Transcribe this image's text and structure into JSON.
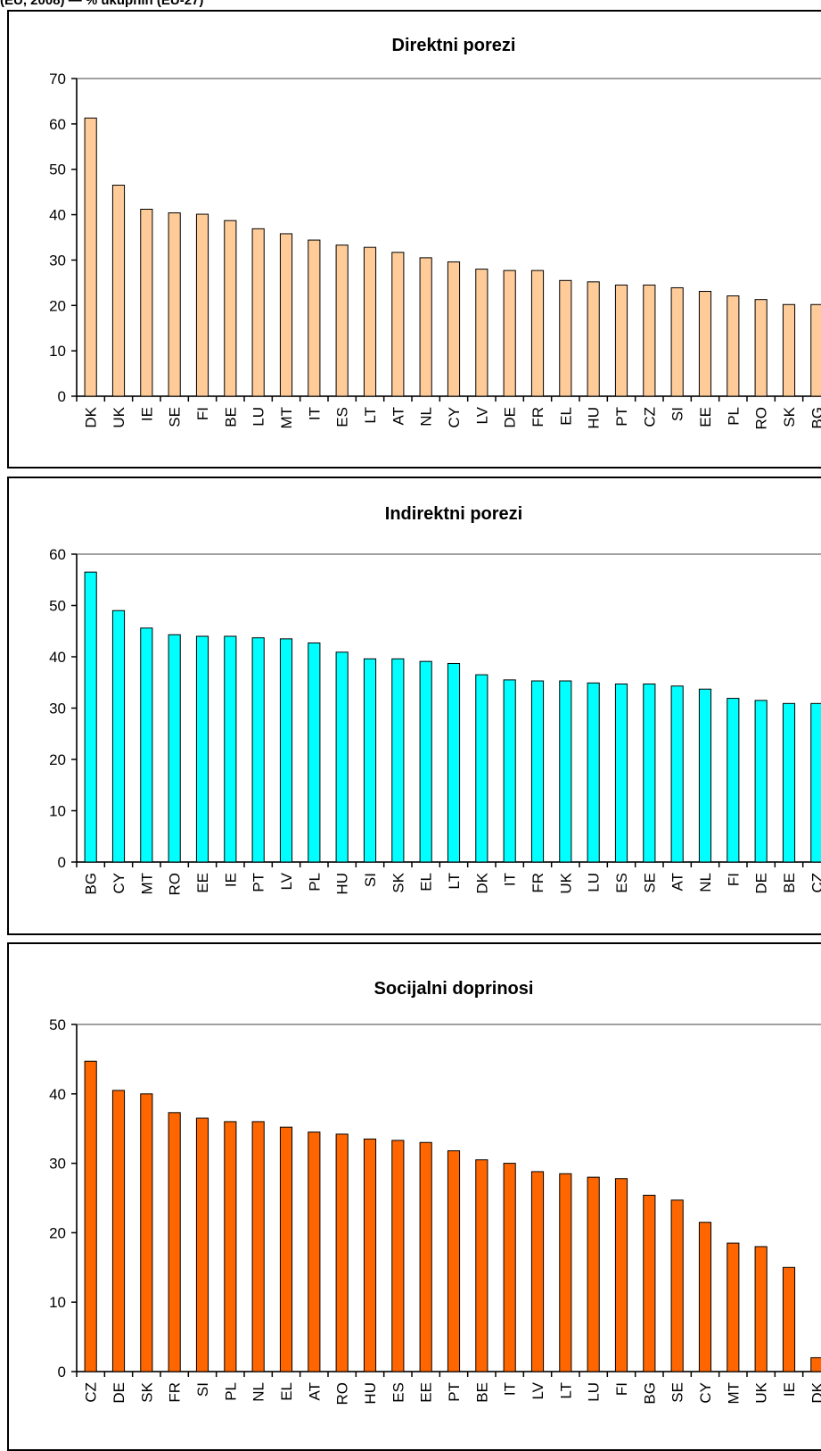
{
  "page": {
    "caption": "(EU, 2008) — % ukupnih (EU-27)"
  },
  "chart_data": [
    {
      "type": "bar",
      "title": "Direktni porezi",
      "categories": [
        "DK",
        "UK",
        "IE",
        "SE",
        "FI",
        "BE",
        "LU",
        "MT",
        "IT",
        "ES",
        "LT",
        "AT",
        "NL",
        "CY",
        "LV",
        "DE",
        "FR",
        "EL",
        "HU",
        "PT",
        "CZ",
        "SI",
        "EE",
        "PL",
        "RO",
        "SK",
        "BG"
      ],
      "values": [
        61.3,
        46.5,
        41.2,
        40.4,
        40.1,
        38.7,
        36.9,
        35.8,
        34.4,
        33.3,
        32.8,
        31.7,
        30.5,
        29.6,
        28.0,
        27.7,
        27.7,
        25.5,
        25.2,
        24.5,
        24.5,
        23.9,
        23.1,
        22.1,
        21.3,
        20.2,
        20.2
      ],
      "ylim": [
        0,
        70
      ],
      "yticks": [
        0,
        10,
        20,
        30,
        40,
        50,
        60,
        70
      ],
      "color": "#FFCC99",
      "xlabel": "",
      "ylabel": "",
      "grid": false
    },
    {
      "type": "bar",
      "title": "Indirektni porezi",
      "categories": [
        "BG",
        "CY",
        "MT",
        "RO",
        "EE",
        "IE",
        "PT",
        "LV",
        "PL",
        "HU",
        "SI",
        "SK",
        "EL",
        "LT",
        "DK",
        "IT",
        "FR",
        "UK",
        "LU",
        "ES",
        "SE",
        "AT",
        "NL",
        "FI",
        "DE",
        "BE",
        "CZ"
      ],
      "values": [
        56.5,
        49.0,
        45.6,
        44.3,
        44.0,
        44.0,
        43.7,
        43.5,
        42.7,
        40.9,
        39.6,
        39.6,
        39.1,
        38.7,
        36.5,
        35.5,
        35.3,
        35.3,
        34.9,
        34.7,
        34.7,
        34.3,
        33.7,
        31.9,
        31.5,
        30.9,
        30.9
      ],
      "ylim": [
        0,
        60
      ],
      "yticks": [
        0,
        10,
        20,
        30,
        40,
        50,
        60
      ],
      "color": "#00FFFF",
      "xlabel": "",
      "ylabel": "",
      "grid": false
    },
    {
      "type": "bar",
      "title": "Socijalni doprinosi",
      "categories": [
        "CZ",
        "DE",
        "SK",
        "FR",
        "SI",
        "PL",
        "NL",
        "EL",
        "AT",
        "RO",
        "HU",
        "ES",
        "EE",
        "PT",
        "BE",
        "IT",
        "LV",
        "LT",
        "LU",
        "FI",
        "BG",
        "SE",
        "CY",
        "MT",
        "UK",
        "IE",
        "DK"
      ],
      "values": [
        44.7,
        40.5,
        40.0,
        37.3,
        36.5,
        36.0,
        36.0,
        35.2,
        34.5,
        34.2,
        33.5,
        33.3,
        33.0,
        31.8,
        30.5,
        30.0,
        28.8,
        28.5,
        28.0,
        27.8,
        25.4,
        24.7,
        21.5,
        18.5,
        18.0,
        15.0,
        2.0
      ],
      "ylim": [
        0,
        50
      ],
      "yticks": [
        0,
        10,
        20,
        30,
        40,
        50
      ],
      "color": "#FF6600",
      "xlabel": "",
      "ylabel": "",
      "grid": false
    }
  ]
}
